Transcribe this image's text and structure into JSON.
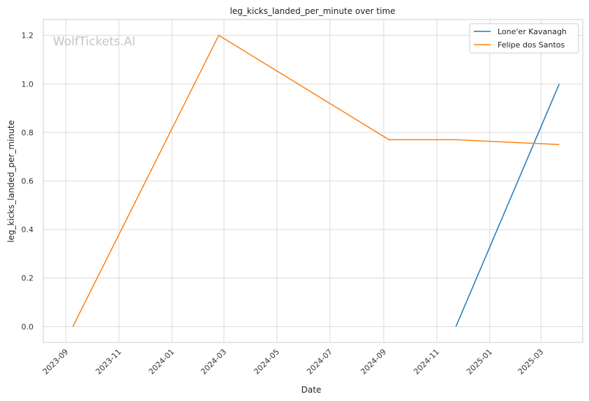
{
  "chart_data": {
    "type": "line",
    "title": "leg_kicks_landed_per_minute over time",
    "xlabel": "Date",
    "ylabel": "leg_kicks_landed_per_minute",
    "watermark": "WolfTickets.AI",
    "x_ticks": [
      "2023-09",
      "2023-11",
      "2024-01",
      "2024-03",
      "2024-05",
      "2024-07",
      "2024-09",
      "2024-11",
      "2025-01",
      "2025-03"
    ],
    "y_ticks": [
      "0.0",
      "0.2",
      "0.4",
      "0.6",
      "0.8",
      "1.0",
      "1.2"
    ],
    "ylim": [
      -0.065,
      1.265
    ],
    "xlim": [
      "2023-08-06",
      "2025-04-18"
    ],
    "grid": true,
    "legend_position": "top-right",
    "series": [
      {
        "name": "Lone'er Kavanagh",
        "color": "#1f77b4",
        "points": [
          {
            "x": "2024-11-23",
            "y": 0.0
          },
          {
            "x": "2025-03-22",
            "y": 1.0
          }
        ]
      },
      {
        "name": "Felipe dos Santos",
        "color": "#ff7f0e",
        "points": [
          {
            "x": "2023-09-09",
            "y": 0.0
          },
          {
            "x": "2024-02-24",
            "y": 1.2
          },
          {
            "x": "2024-09-07",
            "y": 0.77
          },
          {
            "x": "2024-11-23",
            "y": 0.77
          },
          {
            "x": "2025-03-22",
            "y": 0.75
          }
        ]
      }
    ]
  }
}
